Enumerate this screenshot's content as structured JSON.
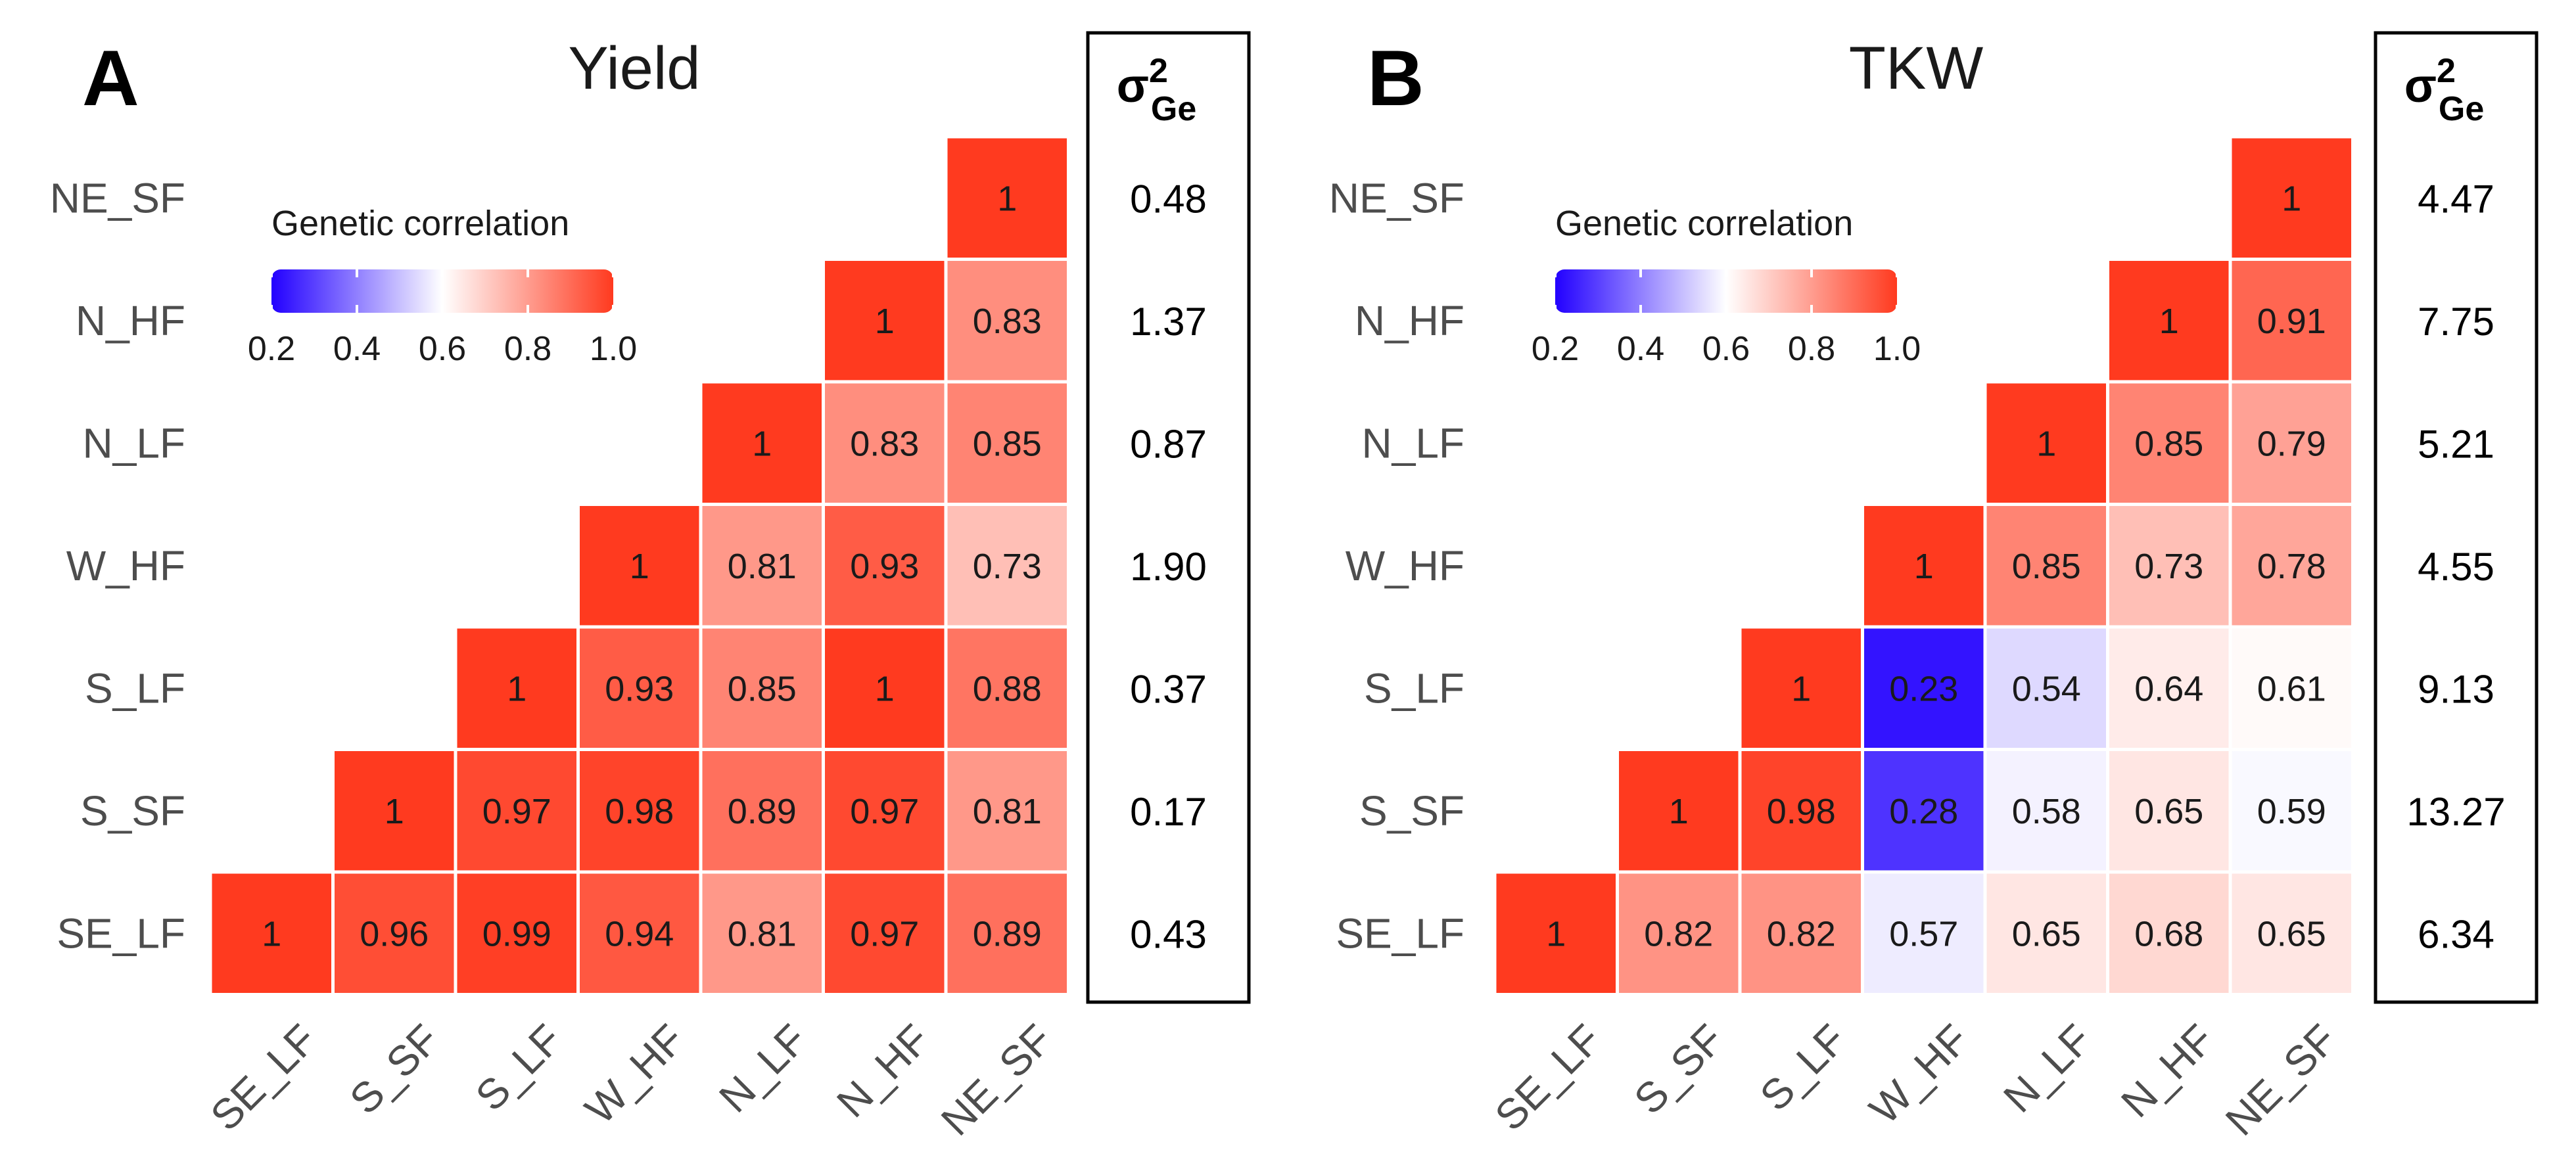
{
  "chart_data": [
    {
      "type": "heatmap",
      "panel_label": "A",
      "title": "Yield",
      "row_labels": [
        "NE_SF",
        "N_HF",
        "N_LF",
        "W_HF",
        "S_LF",
        "S_SF",
        "SE_LF"
      ],
      "col_labels": [
        "SE_LF",
        "S_SF",
        "S_LF",
        "W_HF",
        "N_LF",
        "N_HF",
        "NE_SF"
      ],
      "matrix_rows": [
        [
          null,
          null,
          null,
          null,
          null,
          null,
          1
        ],
        [
          null,
          null,
          null,
          null,
          null,
          1,
          0.83
        ],
        [
          null,
          null,
          null,
          null,
          1,
          0.83,
          0.85
        ],
        [
          null,
          null,
          null,
          1,
          0.81,
          0.93,
          0.73
        ],
        [
          null,
          null,
          1,
          0.93,
          0.85,
          1,
          0.88
        ],
        [
          null,
          1,
          0.97,
          0.98,
          0.89,
          0.97,
          0.81
        ],
        [
          1,
          0.96,
          0.99,
          0.94,
          0.81,
          0.97,
          0.89
        ]
      ],
      "legend": {
        "title": "Genetic correlation",
        "tick_labels": [
          "0.2",
          "0.4",
          "0.6",
          "0.8",
          "1.0"
        ],
        "tick_values": [
          0.2,
          0.4,
          0.6,
          0.8,
          1.0
        ],
        "range": [
          0.2,
          1.0
        ],
        "colors": {
          "low": "#2200ff",
          "mid": "#ffffff",
          "high": "#ff3a1f"
        },
        "midpoint": 0.6
      },
      "variance_header": {
        "sigma": "σ",
        "sup": "2",
        "sub": "Ge"
      },
      "variance_values": [
        "0.48",
        "1.37",
        "0.87",
        "1.90",
        "0.37",
        "0.17",
        "0.43"
      ]
    },
    {
      "type": "heatmap",
      "panel_label": "B",
      "title": "TKW",
      "row_labels": [
        "NE_SF",
        "N_HF",
        "N_LF",
        "W_HF",
        "S_LF",
        "S_SF",
        "SE_LF"
      ],
      "col_labels": [
        "SE_LF",
        "S_SF",
        "S_LF",
        "W_HF",
        "N_LF",
        "N_HF",
        "NE_SF"
      ],
      "matrix_rows": [
        [
          null,
          null,
          null,
          null,
          null,
          null,
          1
        ],
        [
          null,
          null,
          null,
          null,
          null,
          1,
          0.91
        ],
        [
          null,
          null,
          null,
          null,
          1,
          0.85,
          0.79
        ],
        [
          null,
          null,
          null,
          1,
          0.85,
          0.73,
          0.78
        ],
        [
          null,
          null,
          1,
          0.23,
          0.54,
          0.64,
          0.61
        ],
        [
          null,
          1,
          0.98,
          0.28,
          0.58,
          0.65,
          0.59
        ],
        [
          1,
          0.82,
          0.82,
          0.57,
          0.65,
          0.68,
          0.65
        ]
      ],
      "legend": {
        "title": "Genetic correlation",
        "tick_labels": [
          "0.2",
          "0.4",
          "0.6",
          "0.8",
          "1.0"
        ],
        "tick_values": [
          0.2,
          0.4,
          0.6,
          0.8,
          1.0
        ],
        "range": [
          0.2,
          1.0
        ],
        "colors": {
          "low": "#2200ff",
          "mid": "#ffffff",
          "high": "#ff3a1f"
        },
        "midpoint": 0.6
      },
      "variance_header": {
        "sigma": "σ",
        "sup": "2",
        "sub": "Ge"
      },
      "variance_values": [
        "4.47",
        "7.75",
        "5.21",
        "4.55",
        "9.13",
        "13.27",
        "6.34"
      ]
    }
  ]
}
